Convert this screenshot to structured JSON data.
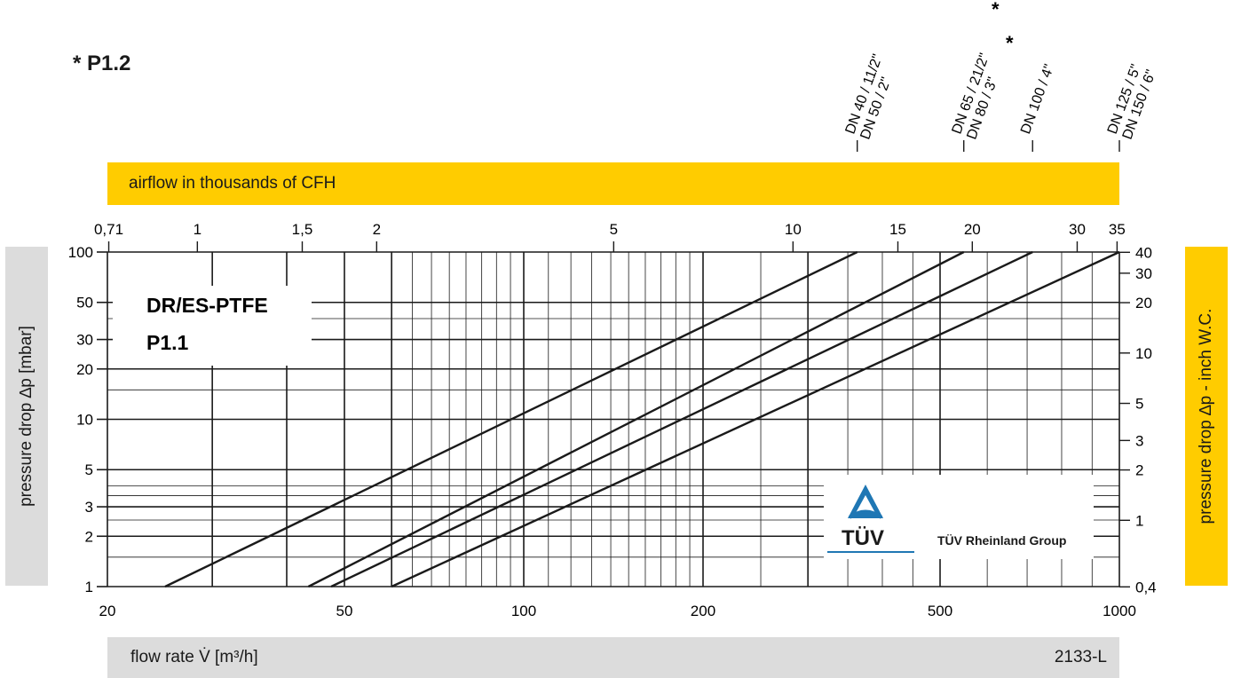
{
  "footnote": "* P1.2",
  "chart_data": {
    "type": "line",
    "title": "DR/ES-PTFE",
    "subtitle": "P1.1",
    "xlabel": "flow rate V̇ [m³/h]",
    "ylabel": "pressure drop ∆p [mbar]",
    "x2label": "airflow in thousands of CFH",
    "y2label": "pressure drop ∆p - inch W.C.",
    "code": "2133-L",
    "xscale": "log",
    "yscale": "log",
    "xlim": [
      20,
      1000
    ],
    "ylim": [
      1,
      100
    ],
    "x_ticks": [
      "20",
      "50",
      "100",
      "200",
      "500",
      "1000"
    ],
    "y_ticks": [
      "1",
      "2",
      "3",
      "5",
      "10",
      "20",
      "30",
      "50",
      "100"
    ],
    "x2_ticks": [
      {
        "v": 0.71,
        "label": "0,71"
      },
      {
        "v": 1,
        "label": "1"
      },
      {
        "v": 1.5,
        "label": "1,5"
      },
      {
        "v": 2,
        "label": "2"
      },
      {
        "v": 5,
        "label": "5"
      },
      {
        "v": 10,
        "label": "10"
      },
      {
        "v": 15,
        "label": "15"
      },
      {
        "v": 20,
        "label": "20"
      },
      {
        "v": 30,
        "label": "30"
      },
      {
        "v": 35,
        "label": "35"
      }
    ],
    "y2_ticks": [
      {
        "v": 0.4,
        "label": "0,4"
      },
      {
        "v": 1,
        "label": "1"
      },
      {
        "v": 2,
        "label": "2"
      },
      {
        "v": 3,
        "label": "3"
      },
      {
        "v": 5,
        "label": "5"
      },
      {
        "v": 10,
        "label": "10"
      },
      {
        "v": 20,
        "label": "20"
      },
      {
        "v": 30,
        "label": "30"
      },
      {
        "v": 40,
        "label": "40"
      }
    ],
    "series": [
      {
        "label": "DN 40 / 11/2\"",
        "label2": "DN 50 / 2\"",
        "mark": "",
        "x": [
          25,
          363
        ],
        "y": [
          1,
          100
        ]
      },
      {
        "label": "DN 65 / 21/2\"",
        "label2": "DN 80 / 3\"",
        "mark": "*",
        "x": [
          43.5,
          548
        ],
        "y": [
          1,
          100
        ]
      },
      {
        "label": "DN 100 / 4\"",
        "label2": "",
        "mark": "*",
        "x": [
          47.5,
          715
        ],
        "y": [
          1,
          100
        ]
      },
      {
        "label": "DN 125 / 5\"",
        "label2": "DN 150 / 6\"",
        "mark": "",
        "x": [
          60,
          1000
        ],
        "y": [
          1,
          100
        ]
      }
    ]
  },
  "logo": {
    "mark": "TÜV",
    "text": "TÜV Rheinland Group",
    "color": "#1f77b4"
  }
}
